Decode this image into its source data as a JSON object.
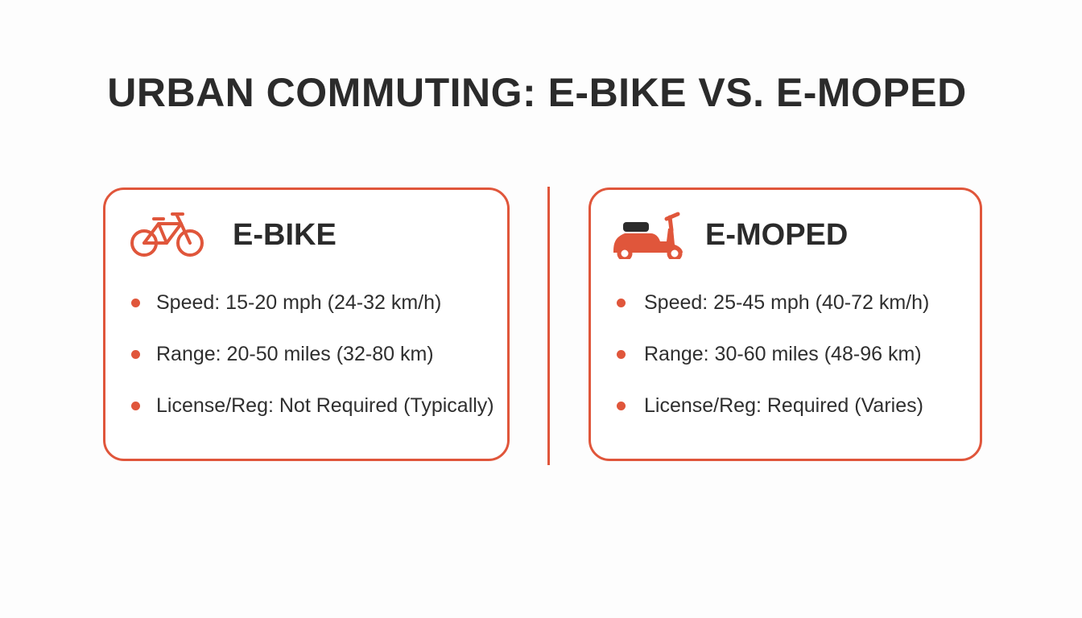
{
  "title": "URBAN COMMUTING: E-BIKE VS. E-MOPED",
  "colors": {
    "accent": "#e0563b",
    "text": "#2b2b2b",
    "background": "#fdfdfd"
  },
  "ebike": {
    "icon": "bicycle-icon",
    "title": "E-BIKE",
    "features": [
      "Speed: 15-20 mph (24-32 km/h)",
      "Range: 20-50 miles (32-80 km)",
      "License/Reg: Not Required (Typically)"
    ]
  },
  "emoped": {
    "icon": "moped-icon",
    "title": "E-MOPED",
    "features": [
      "Speed: 25-45 mph (40-72 km/h)",
      "Range: 30-60 miles (48-96 km)",
      "License/Reg: Required (Varies)"
    ]
  }
}
